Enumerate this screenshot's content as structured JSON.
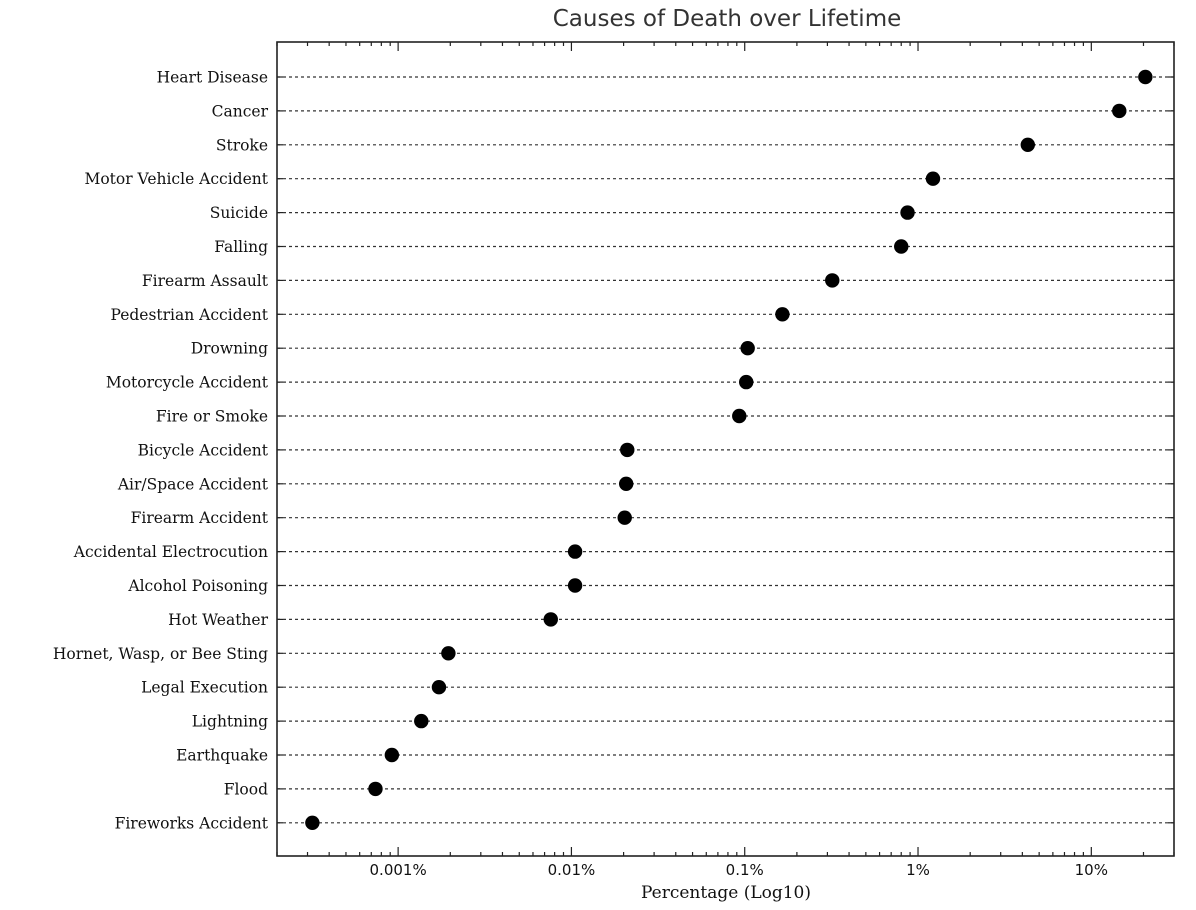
{
  "chart_data": {
    "type": "scatter",
    "title": "Causes of Death over Lifetime",
    "xlabel": "Percentage (Log10)",
    "ylabel": "",
    "x_scale": "log10",
    "xlim": [
      0.0002,
      30
    ],
    "grid": "horizontal dotted",
    "legend": "none",
    "xticks": [
      {
        "value": 0.001,
        "label": "0.001%"
      },
      {
        "value": 0.01,
        "label": "0.01%"
      },
      {
        "value": 0.1,
        "label": "0.1%"
      },
      {
        "value": 1,
        "label": "1%"
      },
      {
        "value": 10,
        "label": "10%"
      }
    ],
    "categories": [
      "Heart Disease",
      "Cancer",
      "Stroke",
      "Motor Vehicle Accident",
      "Suicide",
      "Falling",
      "Firearm Assault",
      "Pedestrian Accident",
      "Drowning",
      "Motorcycle Accident",
      "Fire or Smoke",
      "Bicycle Accident",
      "Air/Space Accident",
      "Firearm Accident",
      "Accidental Electrocution",
      "Alcohol Poisoning",
      "Hot Weather",
      "Hornet, Wasp, or Bee Sting",
      "Legal Execution",
      "Lightning",
      "Earthquake",
      "Flood",
      "Fireworks Accident"
    ],
    "values": [
      20.5,
      14.5,
      4.3,
      1.22,
      0.87,
      0.8,
      0.32,
      0.165,
      0.104,
      0.102,
      0.093,
      0.021,
      0.0207,
      0.0203,
      0.0105,
      0.0105,
      0.0076,
      0.00195,
      0.00172,
      0.00136,
      0.00092,
      0.00074,
      0.00032
    ]
  }
}
